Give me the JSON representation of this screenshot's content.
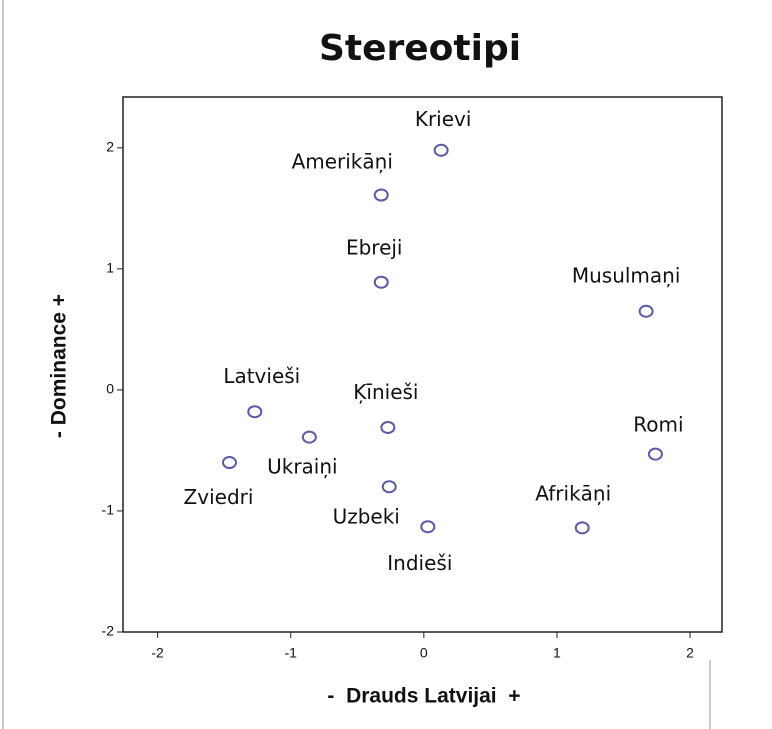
{
  "chart_data": {
    "type": "scatter",
    "title": "Stereotipi",
    "xlabel": "-  Drauds Latvijai  +",
    "ylabel": "- Dominance +",
    "color": "#5b5ba6",
    "labels": [
      "Krievi",
      "Amerikāņi",
      "Ebreji",
      "Musulmaņi",
      "Latvieši",
      "Ķīnieši",
      "Ukraiņi",
      "Romi",
      "Zviedri",
      "Uzbeki",
      "Indieši",
      "Afrikāņi"
    ],
    "x": [
      0.13,
      -0.32,
      -0.32,
      1.67,
      -1.27,
      -0.27,
      -0.86,
      1.74,
      -1.46,
      -0.26,
      0.03,
      1.19
    ],
    "y": [
      1.98,
      1.61,
      0.89,
      0.65,
      -0.18,
      -0.31,
      -0.39,
      -0.53,
      -0.6,
      -0.8,
      -1.13,
      -1.14
    ],
    "xlim": [
      -2.26,
      2.24
    ],
    "ylim": [
      -2,
      2.42
    ],
    "xticks": [
      -2,
      -1,
      0,
      1,
      2
    ],
    "yticks": [
      -2,
      -1,
      0,
      1,
      2
    ]
  }
}
